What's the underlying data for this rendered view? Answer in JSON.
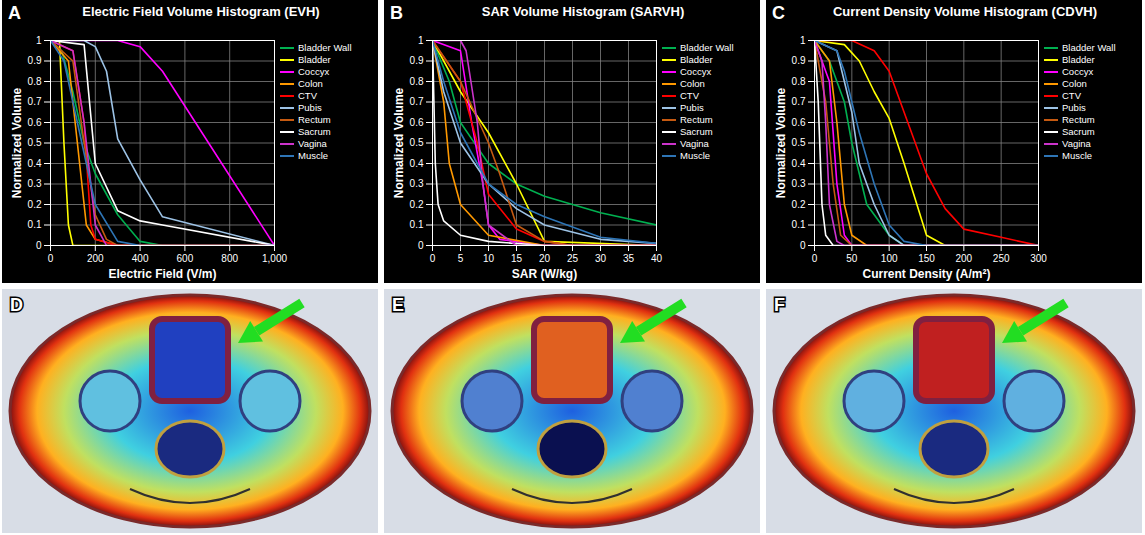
{
  "chart_data": [
    {
      "panel": "A",
      "type": "line",
      "title": "Electric Field Volume Histogram (EVH)",
      "xlabel": "Electric Field (V/m)",
      "ylabel": "Normalized Volume",
      "xlim": [
        0,
        1000
      ],
      "xticks": [
        0,
        200,
        400,
        600,
        800,
        {
          "value": 1000,
          "label": "1,000"
        }
      ],
      "ylim": [
        0,
        1
      ],
      "yticks": [
        0,
        0.1,
        0.2,
        0.3,
        0.4,
        0.5,
        0.6,
        0.7,
        0.8,
        0.9,
        1
      ],
      "grid": true,
      "legend": "right",
      "series": [
        {
          "name": "Bladder Wall",
          "color": "#00b050",
          "x": [
            0,
            50,
            100,
            150,
            200,
            300,
            400,
            500,
            1000
          ],
          "values": [
            1,
            0.95,
            0.75,
            0.5,
            0.35,
            0.15,
            0.02,
            0,
            0
          ]
        },
        {
          "name": "Bladder",
          "color": "#ffff00",
          "x": [
            0,
            40,
            60,
            80,
            100,
            1000
          ],
          "values": [
            1,
            1,
            0.5,
            0.1,
            0,
            0
          ]
        },
        {
          "name": "Coccyx",
          "color": "#ff00ff",
          "x": [
            0,
            300,
            400,
            500,
            1000
          ],
          "values": [
            1,
            1,
            0.97,
            0.85,
            0
          ]
        },
        {
          "name": "Colon",
          "color": "#ff9900",
          "x": [
            0,
            80,
            120,
            160,
            200,
            300,
            1000
          ],
          "values": [
            1,
            0.9,
            0.5,
            0.1,
            0.03,
            0,
            0
          ]
        },
        {
          "name": "CTV",
          "color": "#ff0000",
          "x": [
            0,
            100,
            150,
            180,
            200,
            300,
            1000
          ],
          "values": [
            1,
            0.95,
            0.6,
            0.1,
            0.03,
            0,
            0
          ]
        },
        {
          "name": "Pubis",
          "color": "#9dc3e6",
          "x": [
            0,
            150,
            200,
            250,
            300,
            400,
            500,
            1000
          ],
          "values": [
            1,
            1,
            0.97,
            0.85,
            0.52,
            0.32,
            0.14,
            0
          ]
        },
        {
          "name": "Rectum",
          "color": "#c55a11",
          "x": [
            0,
            100,
            150,
            200,
            250,
            300,
            1000
          ],
          "values": [
            1,
            0.9,
            0.5,
            0.15,
            0.03,
            0,
            0
          ]
        },
        {
          "name": "Sacrum",
          "color": "#ffffff",
          "x": [
            0,
            150,
            200,
            300,
            400,
            500,
            1000
          ],
          "values": [
            1,
            0.98,
            0.4,
            0.17,
            0.12,
            0.1,
            0
          ]
        },
        {
          "name": "Vagina",
          "color": "#cc33cc",
          "x": [
            0,
            100,
            150,
            200,
            250,
            1000
          ],
          "values": [
            1,
            0.95,
            0.6,
            0.1,
            0,
            0
          ]
        },
        {
          "name": "Muscle",
          "color": "#2e75b6",
          "x": [
            0,
            60,
            120,
            200,
            300,
            400,
            1000
          ],
          "values": [
            1,
            0.9,
            0.6,
            0.2,
            0.02,
            0,
            0
          ]
        }
      ]
    },
    {
      "panel": "B",
      "type": "line",
      "title": "SAR Volume Histogram (SARVH)",
      "xlabel": "SAR (W/kg)",
      "ylabel": "Normalized Volume",
      "xlim": [
        0,
        40
      ],
      "xticks": [
        0,
        5,
        10,
        15,
        20,
        25,
        30,
        35,
        40
      ],
      "ylim": [
        0,
        1
      ],
      "yticks": [
        0,
        0.1,
        0.2,
        0.3,
        0.4,
        0.5,
        0.6,
        0.7,
        0.8,
        0.9,
        1
      ],
      "grid": true,
      "legend": "right",
      "series": [
        {
          "name": "Bladder Wall",
          "color": "#00b050",
          "x": [
            0,
            3,
            5,
            8,
            10,
            15,
            20,
            30,
            40
          ],
          "values": [
            1,
            0.8,
            0.6,
            0.48,
            0.4,
            0.3,
            0.24,
            0.16,
            0.1
          ]
        },
        {
          "name": "Bladder",
          "color": "#ffff00",
          "x": [
            0,
            5,
            10,
            15,
            20,
            40
          ],
          "values": [
            1,
            0.75,
            0.55,
            0.3,
            0.02,
            0
          ]
        },
        {
          "name": "Coccyx",
          "color": "#ff00ff",
          "x": [
            0,
            5,
            7,
            9,
            10,
            12,
            20,
            40
          ],
          "values": [
            1,
            0.95,
            0.6,
            0.3,
            0.1,
            0.03,
            0,
            0
          ]
        },
        {
          "name": "Colon",
          "color": "#ff9900",
          "x": [
            0,
            2,
            3,
            5,
            10,
            20,
            40
          ],
          "values": [
            1,
            0.7,
            0.4,
            0.2,
            0.05,
            0,
            0
          ]
        },
        {
          "name": "CTV",
          "color": "#ff0000",
          "x": [
            0,
            5,
            8,
            10,
            15,
            20,
            25,
            40
          ],
          "values": [
            1,
            0.8,
            0.5,
            0.25,
            0.08,
            0.02,
            0,
            0
          ]
        },
        {
          "name": "Pubis",
          "color": "#9dc3e6",
          "x": [
            0,
            2,
            5,
            10,
            15,
            20,
            30,
            40
          ],
          "values": [
            1,
            0.75,
            0.5,
            0.3,
            0.18,
            0.1,
            0.03,
            0.01
          ]
        },
        {
          "name": "Rectum",
          "color": "#c55a11",
          "x": [
            0,
            5,
            10,
            12,
            15,
            20,
            25,
            40
          ],
          "values": [
            1,
            0.8,
            0.5,
            0.35,
            0.1,
            0.02,
            0,
            0
          ]
        },
        {
          "name": "Sacrum",
          "color": "#ffffff",
          "x": [
            0,
            0.5,
            1,
            2,
            5,
            10,
            20,
            40
          ],
          "values": [
            1,
            0.4,
            0.2,
            0.12,
            0.05,
            0.02,
            0,
            0
          ]
        },
        {
          "name": "Vagina",
          "color": "#cc33cc",
          "x": [
            0,
            5,
            6,
            8,
            9,
            10,
            15,
            40
          ],
          "values": [
            1,
            1,
            0.95,
            0.6,
            0.3,
            0.1,
            0,
            0
          ]
        },
        {
          "name": "Muscle",
          "color": "#2e75b6",
          "x": [
            0,
            2,
            5,
            10,
            15,
            20,
            30,
            40
          ],
          "values": [
            1,
            0.8,
            0.55,
            0.3,
            0.2,
            0.14,
            0.04,
            0.01
          ]
        }
      ]
    },
    {
      "panel": "C",
      "type": "line",
      "title": "Current Density Volume Histogram (CDVH)",
      "xlabel": "Current Density (A/m²)",
      "ylabel": "Normalized Volume",
      "xlim": [
        0,
        300
      ],
      "xticks": [
        0,
        50,
        100,
        150,
        200,
        250,
        300
      ],
      "ylim": [
        0,
        1
      ],
      "yticks": [
        0,
        0.1,
        0.2,
        0.3,
        0.4,
        0.5,
        0.6,
        0.7,
        0.8,
        0.9,
        1
      ],
      "grid": true,
      "legend": "right",
      "series": [
        {
          "name": "Bladder Wall",
          "color": "#00b050",
          "x": [
            0,
            20,
            40,
            50,
            70,
            100,
            120,
            300
          ],
          "values": [
            1,
            0.9,
            0.7,
            0.5,
            0.2,
            0.05,
            0,
            0
          ]
        },
        {
          "name": "Bladder",
          "color": "#ffff00",
          "x": [
            0,
            40,
            60,
            80,
            100,
            120,
            150,
            175,
            300
          ],
          "values": [
            1,
            0.98,
            0.9,
            0.75,
            0.62,
            0.4,
            0.05,
            0,
            0
          ]
        },
        {
          "name": "Coccyx",
          "color": "#ff00ff",
          "x": [
            0,
            20,
            30,
            40,
            50,
            300
          ],
          "values": [
            1,
            0.8,
            0.3,
            0.05,
            0,
            0
          ]
        },
        {
          "name": "Colon",
          "color": "#ff9900",
          "x": [
            0,
            20,
            30,
            40,
            50,
            70,
            300
          ],
          "values": [
            1,
            0.9,
            0.6,
            0.2,
            0.05,
            0,
            0
          ]
        },
        {
          "name": "CTV",
          "color": "#ff0000",
          "x": [
            0,
            50,
            80,
            100,
            125,
            150,
            175,
            200,
            250,
            300
          ],
          "values": [
            1,
            1,
            0.95,
            0.85,
            0.6,
            0.35,
            0.18,
            0.08,
            0.04,
            0
          ]
        },
        {
          "name": "Pubis",
          "color": "#9dc3e6",
          "x": [
            0,
            30,
            50,
            60,
            80,
            100,
            120,
            300
          ],
          "values": [
            1,
            0.95,
            0.65,
            0.4,
            0.2,
            0.05,
            0,
            0
          ]
        },
        {
          "name": "Rectum",
          "color": "#c55a11",
          "x": [
            0,
            15,
            25,
            35,
            50,
            300
          ],
          "values": [
            1,
            0.7,
            0.3,
            0.05,
            0,
            0
          ]
        },
        {
          "name": "Sacrum",
          "color": "#ffffff",
          "x": [
            0,
            5,
            10,
            15,
            25,
            300
          ],
          "values": [
            1,
            0.7,
            0.2,
            0.05,
            0,
            0
          ]
        },
        {
          "name": "Vagina",
          "color": "#cc33cc",
          "x": [
            0,
            10,
            15,
            20,
            30,
            40,
            300
          ],
          "values": [
            1,
            0.9,
            0.6,
            0.2,
            0.02,
            0,
            0
          ]
        },
        {
          "name": "Muscle",
          "color": "#2e75b6",
          "x": [
            0,
            30,
            40,
            60,
            80,
            100,
            120,
            150,
            300
          ],
          "values": [
            1,
            0.95,
            0.85,
            0.55,
            0.3,
            0.1,
            0.02,
            0,
            0
          ]
        }
      ]
    }
  ],
  "images": [
    {
      "panel": "D"
    },
    {
      "panel": "E"
    },
    {
      "panel": "F"
    }
  ]
}
